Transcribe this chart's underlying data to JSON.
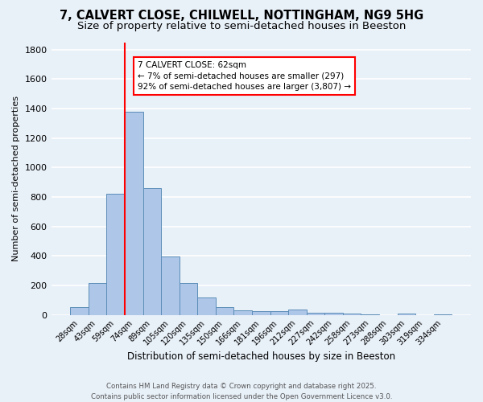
{
  "title_line1": "7, CALVERT CLOSE, CHILWELL, NOTTINGHAM, NG9 5HG",
  "title_line2": "Size of property relative to semi-detached houses in Beeston",
  "xlabel": "Distribution of semi-detached houses by size in Beeston",
  "ylabel": "Number of semi-detached properties",
  "categories": [
    "28sqm",
    "43sqm",
    "59sqm",
    "74sqm",
    "89sqm",
    "105sqm",
    "120sqm",
    "135sqm",
    "150sqm",
    "166sqm",
    "181sqm",
    "196sqm",
    "212sqm",
    "227sqm",
    "242sqm",
    "258sqm",
    "273sqm",
    "288sqm",
    "303sqm",
    "319sqm",
    "334sqm"
  ],
  "values": [
    50,
    215,
    820,
    1380,
    860,
    395,
    215,
    120,
    50,
    30,
    25,
    25,
    35,
    15,
    15,
    10,
    5,
    0,
    10,
    0,
    5
  ],
  "bar_color": "#aec6e8",
  "bar_edge_color": "#5b8db8",
  "vline_color": "red",
  "vline_pos": 2.5,
  "annotation_text": "7 CALVERT CLOSE: 62sqm\n← 7% of semi-detached houses are smaller (297)\n92% of semi-detached houses are larger (3,807) →",
  "ylim": [
    0,
    1850
  ],
  "yticks": [
    0,
    200,
    400,
    600,
    800,
    1000,
    1200,
    1400,
    1600,
    1800
  ],
  "background_color": "#e8f0f8",
  "grid_color": "#ffffff",
  "footer_line1": "Contains HM Land Registry data © Crown copyright and database right 2025.",
  "footer_line2": "Contains public sector information licensed under the Open Government Licence v3.0.",
  "title_fontsize": 10.5,
  "subtitle_fontsize": 9.5
}
